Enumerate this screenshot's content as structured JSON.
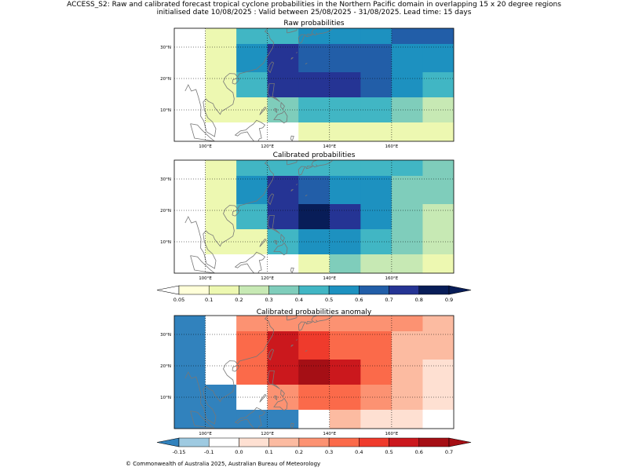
{
  "title_line1": "ACCESS_S2: Raw and calibrated forecast tropical cyclone probabilities in the Northern Pacific domain in overlapping 15 x 20 degree regions",
  "title_line2": "initialised date 10/08/2025 :  Valid between 25/08/2025 - 31/08/2025. Lead time: 15 days",
  "copyright": "© Commonwealth of Australia 2025, Australian Bureau of Meteorology",
  "colors": {
    "coastline": "#777777",
    "prob_scale": [
      "#ffffd9",
      "#edf8b1",
      "#c7e9b4",
      "#7fcdbb",
      "#41b6c4",
      "#1d91c0",
      "#225ea8",
      "#253494",
      "#081d58"
    ],
    "anom_scale": [
      "#3182bd",
      "#9ecae1",
      "#ffffff",
      "#fee0d2",
      "#fcbba1",
      "#fc9272",
      "#fb6a4a",
      "#ef3b2c",
      "#cb181d",
      "#a50f15"
    ]
  },
  "map_extent": {
    "lon": [
      90,
      180
    ],
    "lat": [
      0,
      36
    ]
  },
  "lon_ticks": [
    "100°E",
    "120°E",
    "140°E",
    "160°E"
  ],
  "lat_ticks": [
    "30°N",
    "20°N",
    "10°N"
  ],
  "panels": [
    {
      "title": "Raw probabilities",
      "scale": "prob",
      "rows": [
        [
          "w",
          1,
          4,
          4,
          5,
          5,
          5,
          6,
          6
        ],
        [
          "w",
          1,
          5,
          7,
          6,
          6,
          6,
          5,
          5
        ],
        [
          "w",
          1,
          4,
          7,
          7,
          7,
          6,
          5,
          4
        ],
        [
          "w",
          1,
          1,
          3,
          4,
          4,
          4,
          3,
          2
        ],
        [
          "w",
          "w",
          "w",
          "w",
          1,
          1,
          1,
          1,
          1
        ]
      ]
    },
    {
      "title": "Calibrated probabilities",
      "scale": "prob",
      "rows": [
        [
          "w",
          1,
          4,
          4,
          4,
          4,
          4,
          4,
          3
        ],
        [
          "w",
          1,
          5,
          7,
          6,
          5,
          5,
          3,
          3
        ],
        [
          "w",
          1,
          4,
          7,
          8,
          7,
          5,
          3,
          2
        ],
        [
          "w",
          1,
          1,
          4,
          5,
          5,
          4,
          3,
          2
        ],
        [
          "w",
          "w",
          "w",
          "w",
          1,
          3,
          2,
          2,
          1
        ]
      ]
    },
    {
      "title": "Calibrated probabilities anomaly",
      "scale": "anom",
      "rows": [
        [
          0,
          "w",
          5,
          5,
          5,
          5,
          5,
          5,
          4
        ],
        [
          0,
          "w",
          6,
          8,
          7,
          6,
          6,
          4,
          4
        ],
        [
          0,
          "w",
          6,
          8,
          9,
          8,
          6,
          4,
          3
        ],
        [
          0,
          0,
          "w",
          5,
          6,
          6,
          5,
          4,
          3
        ],
        [
          0,
          0,
          0,
          0,
          "w",
          4,
          3,
          3,
          "w"
        ]
      ]
    }
  ],
  "colorbars": [
    {
      "labels": [
        "0.05",
        "0.1",
        "0.2",
        "0.3",
        "0.4",
        "0.5",
        "0.6",
        "0.7",
        "0.8",
        "0.9"
      ]
    },
    {
      "labels": [
        "-0.15",
        "-0.1",
        "0.0",
        "0.1",
        "0.2",
        "0.3",
        "0.4",
        "0.5",
        "0.6",
        "0.7"
      ]
    }
  ]
}
